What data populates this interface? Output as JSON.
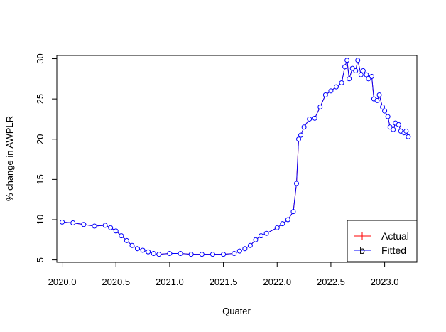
{
  "chart_data": {
    "type": "line",
    "title": "",
    "xlabel": "Quater",
    "ylabel": "% change in AWPLR",
    "xlim": [
      2019.95,
      2023.3
    ],
    "ylim": [
      4.7,
      30.4
    ],
    "x_ticks": [
      2020.0,
      2020.5,
      2021.0,
      2021.5,
      2022.0,
      2022.5,
      2023.0
    ],
    "x_tick_labels": [
      "2020.0",
      "2020.5",
      "2021.0",
      "2021.5",
      "2022.0",
      "2022.5",
      "2023.0"
    ],
    "y_ticks": [
      5,
      10,
      15,
      20,
      25,
      30
    ],
    "y_tick_labels": [
      "5",
      "10",
      "15",
      "20",
      "25",
      "30"
    ],
    "grid": false,
    "legend_position": "bottom-right",
    "series": [
      {
        "name": "Actual",
        "color": "#ff0000",
        "style": "line",
        "x": [
          2020.0,
          2020.1,
          2020.2,
          2020.3,
          2020.4,
          2020.45,
          2020.5,
          2020.55,
          2020.6,
          2020.65,
          2020.7,
          2020.75,
          2020.8,
          2020.85,
          2020.9,
          2021.0,
          2021.1,
          2021.2,
          2021.3,
          2021.4,
          2021.5,
          2021.6,
          2021.65,
          2021.7,
          2021.75,
          2021.8,
          2021.85,
          2021.9,
          2022.0,
          2022.05,
          2022.1,
          2022.15,
          2022.18,
          2022.2,
          2022.22,
          2022.25,
          2022.3,
          2022.35,
          2022.4,
          2022.45,
          2022.5,
          2022.55,
          2022.6,
          2022.63,
          2022.65,
          2022.67,
          2022.7,
          2022.73,
          2022.75,
          2022.78,
          2022.8,
          2022.83,
          2022.85,
          2022.88,
          2022.9,
          2022.93,
          2022.95,
          2022.98,
          2023.0,
          2023.03,
          2023.05,
          2023.08,
          2023.1,
          2023.13,
          2023.15,
          2023.18,
          2023.2,
          2023.22
        ],
        "y": [
          9.7,
          9.6,
          9.4,
          9.2,
          9.3,
          9.0,
          8.6,
          8.0,
          7.4,
          6.8,
          6.4,
          6.2,
          6.0,
          5.8,
          5.7,
          5.8,
          5.8,
          5.7,
          5.7,
          5.7,
          5.7,
          5.8,
          6.1,
          6.4,
          6.8,
          7.5,
          8.0,
          8.3,
          9.0,
          9.5,
          10.0,
          11.0,
          14.5,
          20.0,
          20.5,
          21.5,
          22.5,
          22.6,
          24.0,
          25.5,
          26.0,
          26.5,
          27.0,
          29.0,
          29.8,
          27.5,
          28.8,
          28.5,
          29.8,
          28.0,
          28.5,
          28.0,
          27.5,
          27.8,
          25.0,
          24.8,
          25.5,
          24.0,
          23.5,
          22.8,
          21.5,
          21.2,
          22.0,
          21.8,
          21.0,
          20.8,
          21.0,
          20.3
        ]
      },
      {
        "name": "Fitted",
        "color": "#0000ff",
        "style": "b",
        "x": [
          2020.0,
          2020.1,
          2020.2,
          2020.3,
          2020.4,
          2020.45,
          2020.5,
          2020.55,
          2020.6,
          2020.65,
          2020.7,
          2020.75,
          2020.8,
          2020.85,
          2020.9,
          2021.0,
          2021.1,
          2021.2,
          2021.3,
          2021.4,
          2021.5,
          2021.6,
          2021.65,
          2021.7,
          2021.75,
          2021.8,
          2021.85,
          2021.9,
          2022.0,
          2022.05,
          2022.1,
          2022.15,
          2022.18,
          2022.2,
          2022.22,
          2022.25,
          2022.3,
          2022.35,
          2022.4,
          2022.45,
          2022.5,
          2022.55,
          2022.6,
          2022.63,
          2022.65,
          2022.67,
          2022.7,
          2022.73,
          2022.75,
          2022.78,
          2022.8,
          2022.83,
          2022.85,
          2022.88,
          2022.9,
          2022.93,
          2022.95,
          2022.98,
          2023.0,
          2023.03,
          2023.05,
          2023.08,
          2023.1,
          2023.13,
          2023.15,
          2023.18,
          2023.2,
          2023.22
        ],
        "y": [
          9.7,
          9.6,
          9.4,
          9.2,
          9.3,
          9.0,
          8.6,
          8.0,
          7.4,
          6.8,
          6.4,
          6.2,
          6.0,
          5.8,
          5.7,
          5.8,
          5.8,
          5.7,
          5.7,
          5.7,
          5.7,
          5.8,
          6.1,
          6.4,
          6.8,
          7.5,
          8.0,
          8.3,
          9.0,
          9.5,
          10.0,
          11.0,
          14.5,
          20.0,
          20.5,
          21.5,
          22.5,
          22.6,
          24.0,
          25.5,
          26.0,
          26.5,
          27.0,
          29.0,
          29.8,
          27.5,
          28.8,
          28.5,
          29.8,
          28.0,
          28.5,
          28.0,
          27.5,
          27.8,
          25.0,
          24.8,
          25.5,
          24.0,
          23.5,
          22.8,
          21.5,
          21.2,
          22.0,
          21.8,
          21.0,
          20.8,
          21.0,
          20.3
        ]
      }
    ]
  }
}
